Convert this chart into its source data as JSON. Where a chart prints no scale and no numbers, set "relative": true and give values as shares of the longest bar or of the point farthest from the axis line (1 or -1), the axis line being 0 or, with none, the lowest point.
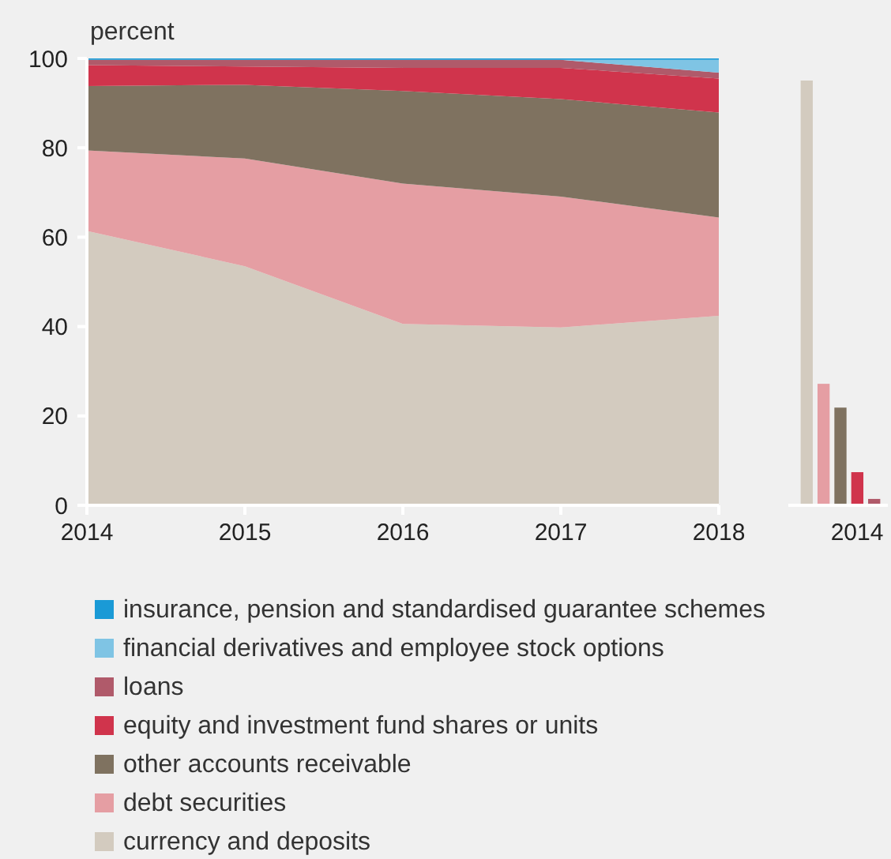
{
  "chart_data": [
    {
      "type": "area",
      "stacked": true,
      "ylabel": "percent",
      "x": [
        2014,
        2015,
        2016,
        2017,
        2018
      ],
      "xlim": [
        2014,
        2018
      ],
      "xticks": [
        2014,
        2015,
        2016,
        2017,
        2018
      ],
      "ylim": [
        0,
        100
      ],
      "yticks": [
        0,
        20,
        40,
        60,
        80,
        100
      ],
      "legend": "bottom",
      "series": [
        {
          "name": "currency and deposits",
          "color": "#d3cbbf",
          "values": [
            61.4,
            53.5,
            40.6,
            39.8,
            42.4
          ]
        },
        {
          "name": "debt securities",
          "color": "#e59ea3",
          "values": [
            18.0,
            24.1,
            31.4,
            29.3,
            22.0
          ]
        },
        {
          "name": "other accounts receivable",
          "color": "#7f7260",
          "values": [
            14.4,
            16.5,
            20.7,
            21.8,
            23.5
          ]
        },
        {
          "name": "equity and investment fund shares or units",
          "color": "#d0344c",
          "values": [
            4.7,
            4.1,
            5.2,
            7.0,
            7.6
          ]
        },
        {
          "name": "loans",
          "color": "#b05a6a",
          "values": [
            1.2,
            1.5,
            1.8,
            1.8,
            1.3
          ]
        },
        {
          "name": "financial derivatives and employee stock options",
          "color": "#7fc4e4",
          "values": [
            0,
            0,
            0,
            0,
            2.9
          ]
        },
        {
          "name": "insurance, pension and standardised guarantee schemes",
          "color": "#1a9ad6",
          "values": [
            0.3,
            0.3,
            0.3,
            0.3,
            0.3
          ]
        }
      ]
    },
    {
      "type": "bar",
      "relative": true,
      "tick_labels": "x",
      "categories": [
        "2014"
      ],
      "series": [
        {
          "color": "#d3cbbf",
          "values": [
            1
          ]
        },
        {
          "color": "#e59ea3",
          "values": [
            0.286
          ]
        },
        {
          "color": "#7f7260",
          "values": [
            0.23
          ]
        },
        {
          "color": "#d0344c",
          "values": [
            0.078
          ]
        },
        {
          "color": "#b05a6a",
          "values": [
            0.015
          ]
        }
      ]
    }
  ]
}
